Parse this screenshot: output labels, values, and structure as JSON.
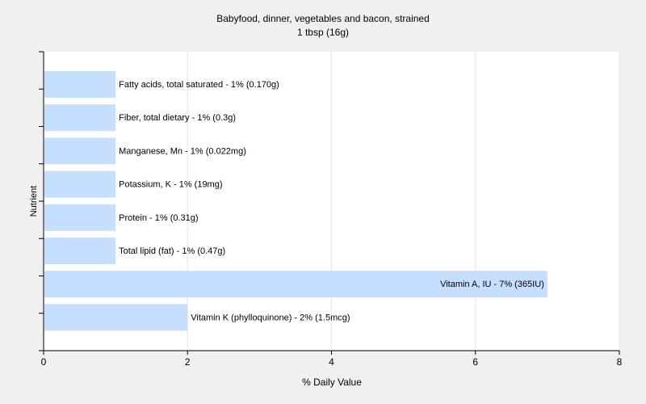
{
  "chart_data": {
    "type": "bar",
    "orientation": "horizontal",
    "title": "Babyfood, dinner, vegetables and bacon, strained",
    "subtitle": "1 tbsp (16g)",
    "xlabel": "% Daily Value",
    "ylabel": "Nutrient",
    "xlim": [
      0,
      8
    ],
    "xticks": [
      0,
      2,
      4,
      6,
      8
    ],
    "grid": true,
    "bar_color": "#c6deff",
    "categories": [
      "Fatty acids, total saturated",
      "Fiber, total dietary",
      "Manganese, Mn",
      "Potassium, K",
      "Protein",
      "Total lipid (fat)",
      "Vitamin A, IU",
      "Vitamin K (phylloquinone)"
    ],
    "values": [
      1,
      1,
      1,
      1,
      1,
      1,
      7,
      2
    ],
    "labels": [
      "Fatty acids, total saturated - 1% (0.170g)",
      "Fiber, total dietary - 1% (0.3g)",
      "Manganese, Mn - 1% (0.022mg)",
      "Potassium, K - 1% (19mg)",
      "Protein - 1% (0.31g)",
      "Total lipid (fat) - 1% (0.47g)",
      "Vitamin A, IU - 7% (365IU)",
      "Vitamin K (phylloquinone) - 2% (1.5mcg)"
    ]
  }
}
